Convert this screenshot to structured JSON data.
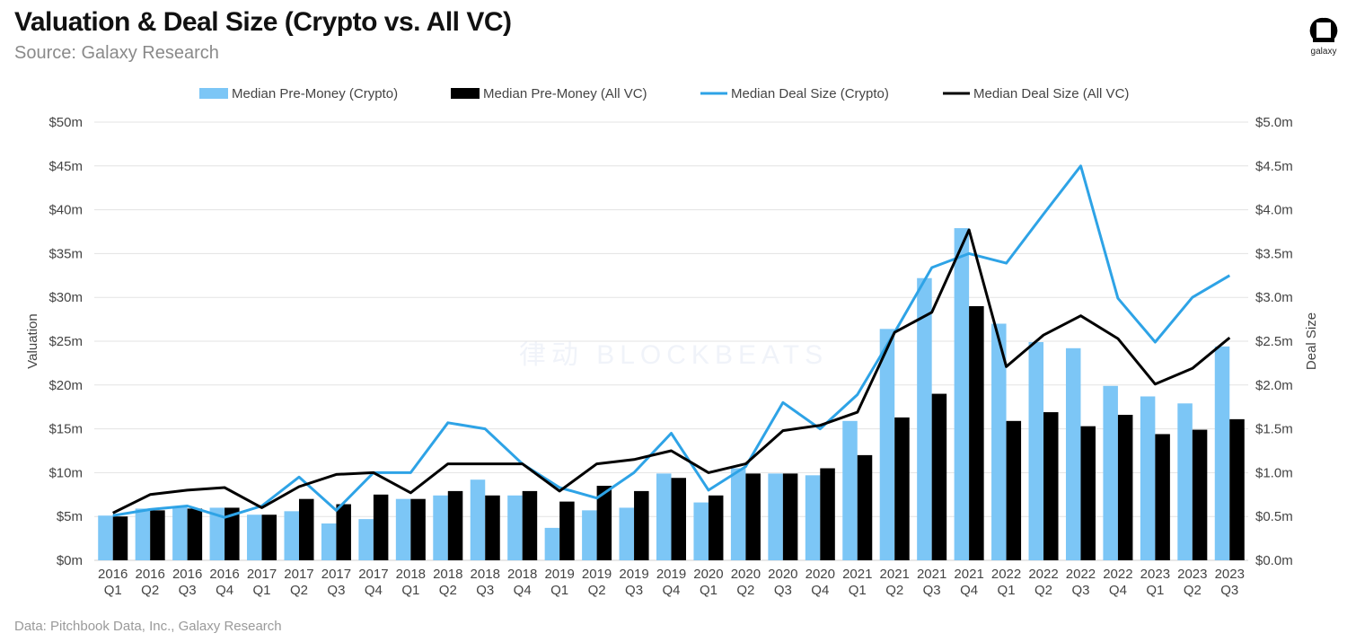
{
  "header": {
    "title": "Valuation & Deal Size (Crypto vs. All VC)",
    "subtitle": "Source: Galaxy Research",
    "logo": "galaxy"
  },
  "footer": {
    "source": "Data: Pitchbook Data, Inc., Galaxy Research"
  },
  "watermark": "律动 BLOCKBEATS",
  "colors": {
    "crypto_bar": "#7cc6f6",
    "allvc_bar": "#000000",
    "crypto_line": "#2ea3e6",
    "allvc_line": "#000000",
    "grid": "#e3e3e3"
  },
  "chart_data": {
    "type": "bar+line",
    "title": "Valuation & Deal Size (Crypto vs. All VC)",
    "ylabel": "Valuation",
    "y2label": "Deal Size",
    "ylim": [
      0,
      50
    ],
    "y2lim": [
      0,
      5.0
    ],
    "yticks": [
      "$0m",
      "$5m",
      "$10m",
      "$15m",
      "$20m",
      "$25m",
      "$30m",
      "$35m",
      "$40m",
      "$45m",
      "$50m"
    ],
    "y2ticks": [
      "$0.0m",
      "$0.5m",
      "$1.0m",
      "$1.5m",
      "$2.0m",
      "$2.5m",
      "$3.0m",
      "$3.5m",
      "$4.0m",
      "$4.5m",
      "$5.0m"
    ],
    "grid": true,
    "legend_position": "top",
    "categories": [
      [
        "2016",
        "Q1"
      ],
      [
        "2016",
        "Q2"
      ],
      [
        "2016",
        "Q3"
      ],
      [
        "2016",
        "Q4"
      ],
      [
        "2017",
        "Q1"
      ],
      [
        "2017",
        "Q2"
      ],
      [
        "2017",
        "Q3"
      ],
      [
        "2017",
        "Q4"
      ],
      [
        "2018",
        "Q1"
      ],
      [
        "2018",
        "Q2"
      ],
      [
        "2018",
        "Q3"
      ],
      [
        "2018",
        "Q4"
      ],
      [
        "2019",
        "Q1"
      ],
      [
        "2019",
        "Q2"
      ],
      [
        "2019",
        "Q3"
      ],
      [
        "2019",
        "Q4"
      ],
      [
        "2020",
        "Q1"
      ],
      [
        "2020",
        "Q2"
      ],
      [
        "2020",
        "Q3"
      ],
      [
        "2020",
        "Q4"
      ],
      [
        "2021",
        "Q1"
      ],
      [
        "2021",
        "Q2"
      ],
      [
        "2021",
        "Q3"
      ],
      [
        "2021",
        "Q4"
      ],
      [
        "2022",
        "Q1"
      ],
      [
        "2022",
        "Q2"
      ],
      [
        "2022",
        "Q3"
      ],
      [
        "2022",
        "Q4"
      ],
      [
        "2023",
        "Q1"
      ],
      [
        "2023",
        "Q2"
      ],
      [
        "2023",
        "Q3"
      ]
    ],
    "series": [
      {
        "name": "Median Pre-Money (Crypto)",
        "kind": "bar",
        "axis": "left",
        "values": [
          5.1,
          5.9,
          6.1,
          6.0,
          5.2,
          5.6,
          4.2,
          4.7,
          7.0,
          7.4,
          9.2,
          7.4,
          3.7,
          5.7,
          6.0,
          9.9,
          6.6,
          10.5,
          9.9,
          9.7,
          15.9,
          26.4,
          32.2,
          37.9,
          27.0,
          24.9,
          24.2,
          19.9,
          18.7,
          17.9,
          24.4
        ]
      },
      {
        "name": "Median Pre-Money (All VC)",
        "kind": "bar",
        "axis": "left",
        "values": [
          5.0,
          5.7,
          5.9,
          6.0,
          5.2,
          7.0,
          6.4,
          7.5,
          7.0,
          7.9,
          7.4,
          7.9,
          6.7,
          8.5,
          7.9,
          9.4,
          7.4,
          9.9,
          9.9,
          10.5,
          12.0,
          16.3,
          19.0,
          29.0,
          15.9,
          16.9,
          15.3,
          16.6,
          14.4,
          14.9,
          16.1
        ]
      },
      {
        "name": "Median Deal Size (Crypto)",
        "kind": "line",
        "axis": "right",
        "values": [
          0.51,
          0.58,
          0.62,
          0.49,
          0.62,
          0.95,
          0.57,
          1.0,
          1.0,
          1.57,
          1.5,
          1.1,
          0.83,
          0.71,
          1.0,
          1.45,
          0.8,
          1.07,
          1.8,
          1.5,
          1.89,
          2.6,
          3.34,
          3.5,
          3.39,
          3.95,
          4.5,
          2.99,
          2.49,
          3.0,
          3.25
        ]
      },
      {
        "name": "Median Deal Size (All VC)",
        "kind": "line",
        "axis": "right",
        "values": [
          0.54,
          0.75,
          0.8,
          0.83,
          0.6,
          0.84,
          0.98,
          1.0,
          0.77,
          1.1,
          1.1,
          1.1,
          0.79,
          1.1,
          1.15,
          1.25,
          1.0,
          1.1,
          1.48,
          1.54,
          1.69,
          2.6,
          2.83,
          3.77,
          2.21,
          2.57,
          2.79,
          2.53,
          2.01,
          2.19,
          2.54
        ]
      }
    ]
  }
}
